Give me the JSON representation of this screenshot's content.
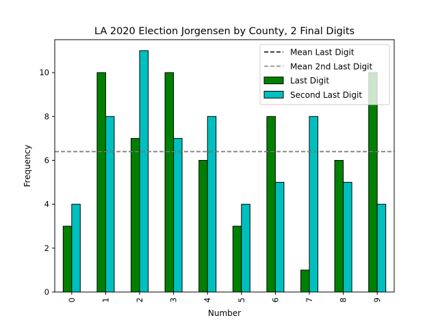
{
  "chart_data": {
    "type": "bar",
    "title": "LA 2020 Election Jorgensen by County, 2 Final Digits",
    "xlabel": "Number",
    "ylabel": "Frequency",
    "categories": [
      "0",
      "1",
      "2",
      "3",
      "4",
      "5",
      "6",
      "7",
      "8",
      "9"
    ],
    "ylim": [
      0,
      11.5
    ],
    "yticks": [
      0,
      2,
      4,
      6,
      8,
      10
    ],
    "series": [
      {
        "name": "Last Digit",
        "color": "#008000",
        "values": [
          3,
          10,
          7,
          10,
          6,
          3,
          8,
          1,
          6,
          10
        ]
      },
      {
        "name": "Second Last Digit",
        "color": "#00bfbf",
        "values": [
          4,
          8,
          11,
          7,
          8,
          4,
          5,
          8,
          5,
          4
        ]
      }
    ],
    "reference_lines": [
      {
        "name": "Mean Last Digit",
        "value": 6.4,
        "color": "#000000",
        "style": "dashed"
      },
      {
        "name": "Mean 2nd Last Digit",
        "value": 6.4,
        "color": "#808080",
        "style": "dashed"
      }
    ],
    "legend": {
      "position": "top-right",
      "entries": [
        "Mean Last Digit",
        "Mean 2nd Last Digit",
        "Last Digit",
        "Second Last Digit"
      ]
    },
    "grid": false
  }
}
